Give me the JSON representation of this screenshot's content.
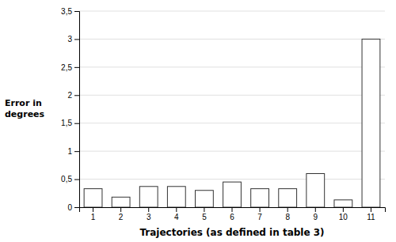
{
  "chart_data": {
    "type": "bar",
    "categories": [
      "1",
      "2",
      "3",
      "4",
      "5",
      "6",
      "7",
      "8",
      "9",
      "10",
      "11"
    ],
    "values": [
      0.33,
      0.18,
      0.37,
      0.37,
      0.3,
      0.45,
      0.33,
      0.33,
      0.6,
      0.13,
      3.0
    ],
    "color": "#ffffff",
    "xlabel": "Trajectories (as defined in table 3)",
    "ylabel": "Error in\ndegrees",
    "ylim": [
      0,
      3.5
    ],
    "yticks": [
      0,
      {
        "value": 0.5,
        "label": "0,5"
      },
      1,
      {
        "value": 1.5,
        "label": "1,5"
      },
      2,
      {
        "value": 2.5,
        "label": "2,5"
      },
      3,
      {
        "value": 3.5,
        "label": "3,5"
      }
    ],
    "grid": true
  }
}
